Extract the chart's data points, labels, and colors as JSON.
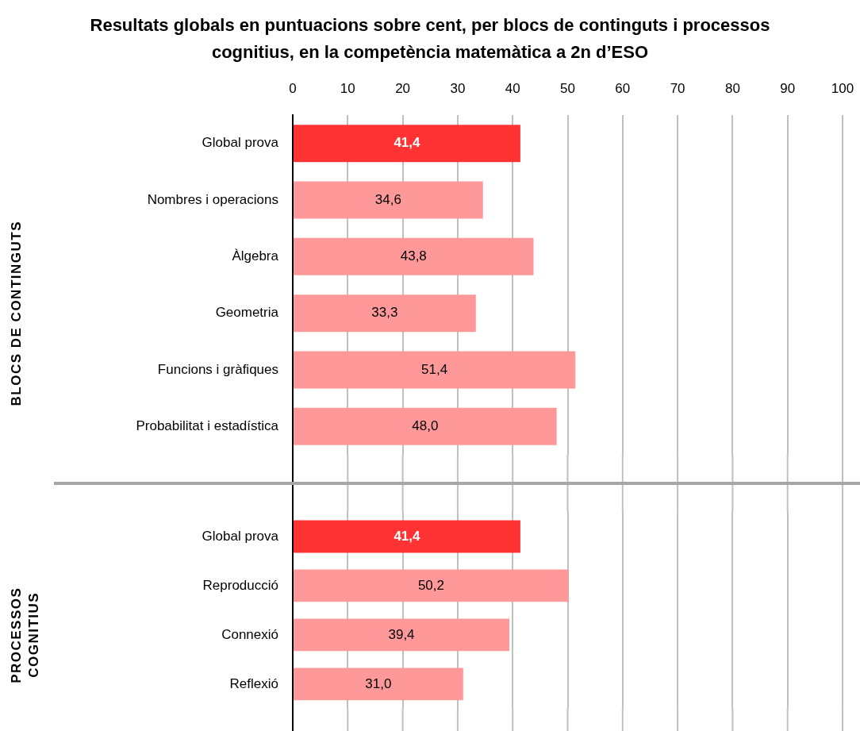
{
  "chart_data": [
    {
      "type": "bar",
      "orientation": "horizontal",
      "title": "Resultats globals en puntuacions sobre cent, per blocs de continguts i processos cognitius, en la competència matemàtica a 2n d’ESO",
      "ylabel": "BLOCS DE CONTINGUTS",
      "categories": [
        "Global prova",
        "Nombres i operacions",
        "Àlgebra",
        "Geometria",
        "Funcions i gràfiques",
        "Probabilitat i estadística"
      ],
      "values": [
        41.4,
        34.6,
        43.8,
        33.3,
        51.4,
        48.0
      ],
      "colors": [
        "#ff3333",
        "#ff9999",
        "#ff9999",
        "#ff9999",
        "#ff9999",
        "#ff9999"
      ],
      "value_labels": [
        "41,4",
        "34,6",
        "43,8",
        "33,3",
        "51,4",
        "48,0"
      ],
      "xlim": [
        0,
        100
      ],
      "xticks": [
        0,
        10,
        20,
        30,
        40,
        50,
        60,
        70,
        80,
        90,
        100
      ],
      "grid": "x"
    },
    {
      "type": "bar",
      "orientation": "horizontal",
      "ylabel": "PROCESSOS COGNITIUS",
      "categories": [
        "Global prova",
        "Reproducció",
        "Connexió",
        "Reflexió"
      ],
      "values": [
        41.4,
        50.2,
        39.4,
        31.0
      ],
      "colors": [
        "#ff3333",
        "#ff9999",
        "#ff9999",
        "#ff9999"
      ],
      "value_labels": [
        "41,4",
        "50,2",
        "39,4",
        "31,0"
      ],
      "xlim": [
        0,
        100
      ],
      "xticks": [
        0,
        10,
        20,
        30,
        40,
        50,
        60,
        70,
        80,
        90,
        100
      ],
      "grid": "x",
      "tick_labels": "y"
    }
  ]
}
